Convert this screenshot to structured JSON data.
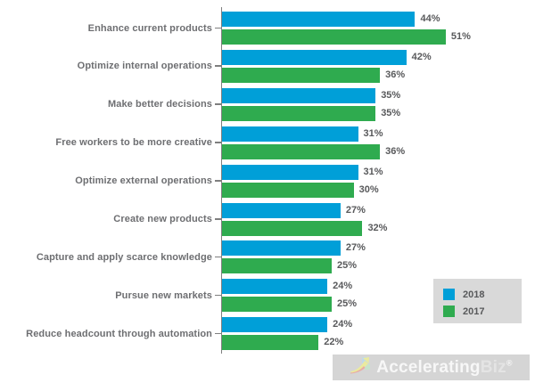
{
  "chart_data": {
    "type": "bar",
    "orientation": "horizontal",
    "title": "",
    "categories": [
      "Enhance current products",
      "Optimize internal operations",
      "Make better decisions",
      "Free workers to be more creative",
      "Optimize external operations",
      "Create new products",
      "Capture and apply scarce knowledge",
      "Pursue new markets",
      "Reduce headcount through automation"
    ],
    "series": [
      {
        "name": "2018",
        "color": "#009FD8",
        "values": [
          44,
          42,
          35,
          31,
          31,
          27,
          27,
          24,
          24
        ]
      },
      {
        "name": "2017",
        "color": "#2FAB4F",
        "values": [
          51,
          36,
          35,
          36,
          30,
          32,
          25,
          25,
          22
        ]
      }
    ],
    "value_suffix": "%",
    "xlim": [
      0,
      60
    ],
    "grid": false,
    "legend_position": "bottom-right",
    "value_labels_shown": true
  },
  "legend": {
    "items": [
      {
        "label": "2018",
        "color": "#009FD8"
      },
      {
        "label": "2017",
        "color": "#2FAB4F"
      }
    ]
  },
  "branding": {
    "part1": "Accelerating",
    "part2": "Biz",
    "registered": "®"
  },
  "colors": {
    "bar_2018": "#009FD8",
    "bar_2017": "#2FAB4F",
    "axis": "#7F7F7F",
    "category_label": "#6D6E71",
    "value_label": "#58595B",
    "legend_bg": "#D9D9D9",
    "brand_bg": "#D5D5D5",
    "background": "#FFFFFF"
  }
}
